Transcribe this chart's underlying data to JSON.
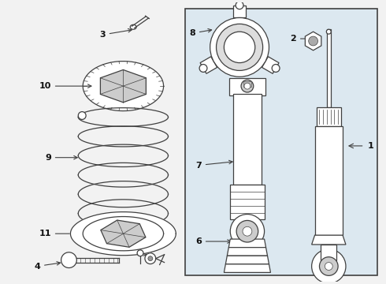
{
  "bg_color": "#f2f2f2",
  "box_bg": "#dce8f0",
  "line_color": "#404040",
  "label_color": "#111111",
  "fig_width": 4.9,
  "fig_height": 3.6,
  "dpi": 100
}
